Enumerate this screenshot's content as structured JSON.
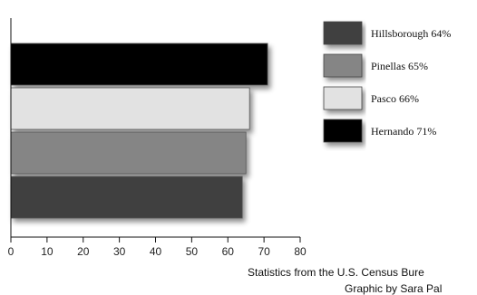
{
  "chart_data": {
    "type": "bar",
    "orientation": "horizontal",
    "categories": [
      "Hernando",
      "Pasco",
      "Pinellas",
      "Hillsborough"
    ],
    "values": [
      71,
      66,
      65,
      64
    ],
    "xlim": [
      0,
      80
    ],
    "xticks": [
      "0",
      "10",
      "20",
      "30",
      "40",
      "50",
      "60",
      "70",
      "80"
    ],
    "grid": false,
    "legend_position": "right",
    "legend": [
      {
        "label": "Hillsborough 64%",
        "color": "#3f3f3f"
      },
      {
        "label": "Pinellas 65%",
        "color": "#858585"
      },
      {
        "label": "Pasco 66%",
        "color": "#e2e2e2"
      },
      {
        "label": "Hernando 71%",
        "color": "#000000"
      }
    ],
    "bar_colors": [
      "#000000",
      "#e2e2e2",
      "#858585",
      "#3f3f3f"
    ]
  },
  "credits": {
    "line1": "Statistics from the U.S. Census Bure",
    "line2": "Graphic by Sara Pal"
  }
}
